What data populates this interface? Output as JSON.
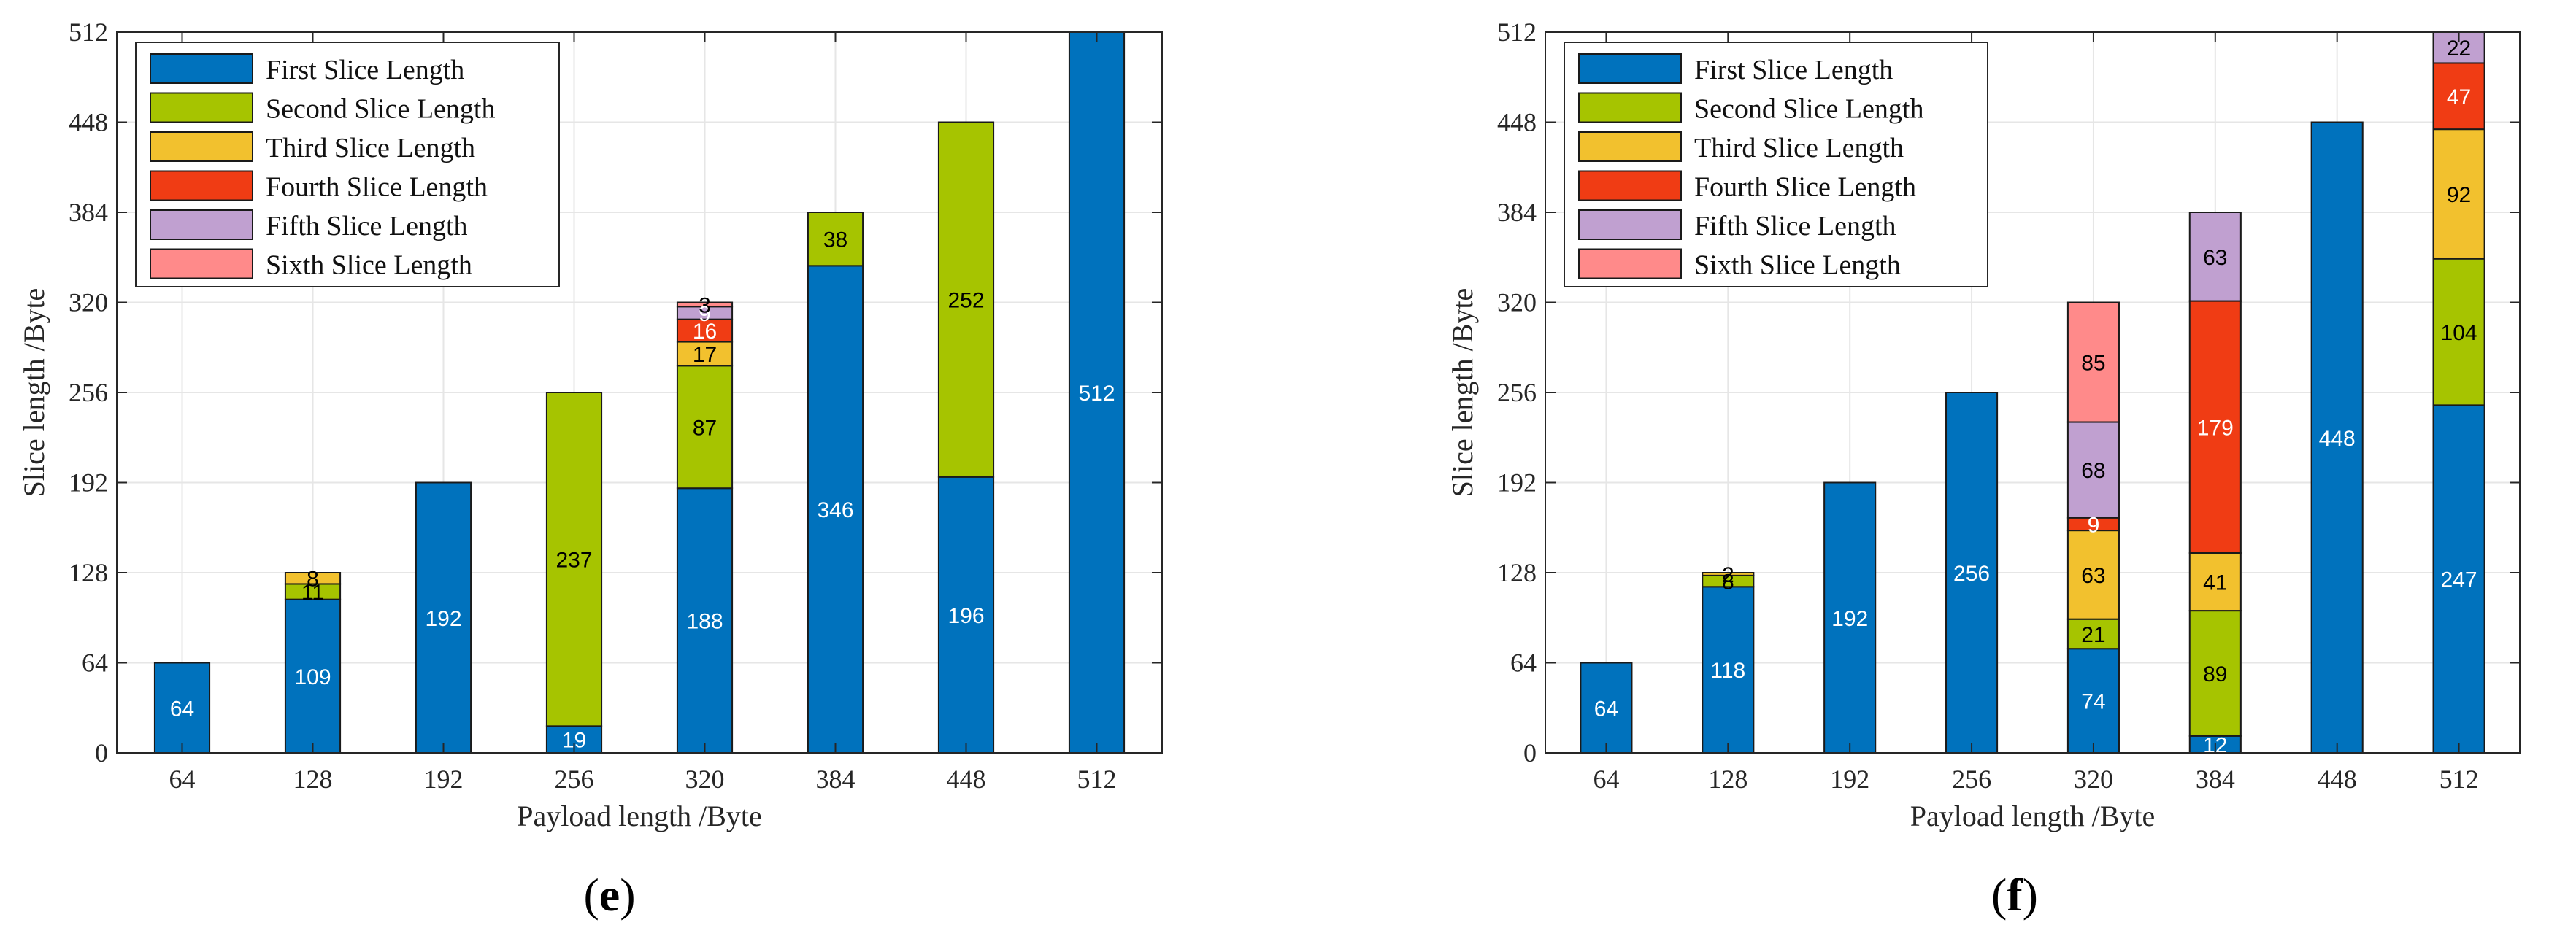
{
  "colors": {
    "first": "#0072BD",
    "second": "#A6C400",
    "third": "#F2C12E",
    "fourth": "#F03C14",
    "fifth": "#C0A0D0",
    "sixth": "#FF8A8A",
    "grid": "#E6E6E6",
    "axis": "#262626"
  },
  "chart_data": [
    {
      "type": "bar",
      "stacked": true,
      "caption": "(e)",
      "caption_letter": "e",
      "xlabel": "Payload length /Byte",
      "ylabel": "Slice length /Byte",
      "categories": [
        "64",
        "128",
        "192",
        "256",
        "320",
        "384",
        "448",
        "512"
      ],
      "ylim": [
        0,
        512
      ],
      "yticks": [
        "0",
        "64",
        "128",
        "192",
        "256",
        "320",
        "384",
        "448",
        "512"
      ],
      "grid": true,
      "legend_position": "top-left",
      "series": [
        {
          "name": "First Slice Length",
          "color_key": "first",
          "values": [
            64,
            109,
            192,
            19,
            188,
            346,
            196,
            512
          ],
          "labels": [
            "64",
            "109",
            "192",
            "19",
            "188",
            "346",
            "196",
            "512"
          ],
          "label_color": "#ffffff"
        },
        {
          "name": "Second Slice Length",
          "color_key": "second",
          "values": [
            0,
            11,
            0,
            237,
            87,
            38,
            252,
            0
          ],
          "labels": [
            "",
            "11",
            "",
            "237",
            "87",
            "38",
            "252",
            ""
          ],
          "label_color": "#000000"
        },
        {
          "name": "Third Slice Length",
          "color_key": "third",
          "values": [
            0,
            8,
            0,
            0,
            17,
            0,
            0,
            0
          ],
          "labels": [
            "",
            "8",
            "",
            "",
            "17",
            "",
            "",
            ""
          ],
          "label_color": "#000000"
        },
        {
          "name": "Fourth Slice Length",
          "color_key": "fourth",
          "values": [
            0,
            0,
            0,
            0,
            16,
            0,
            0,
            0
          ],
          "labels": [
            "",
            "",
            "",
            "",
            "16",
            "",
            "",
            ""
          ],
          "label_color": "#ffffff"
        },
        {
          "name": "Fifth Slice Length",
          "color_key": "fifth",
          "values": [
            0,
            0,
            0,
            0,
            9,
            0,
            0,
            0
          ],
          "labels": [
            "",
            "",
            "",
            "",
            "9",
            "",
            "",
            ""
          ],
          "label_color": "#ffffff"
        },
        {
          "name": "Sixth Slice Length",
          "color_key": "sixth",
          "values": [
            0,
            0,
            0,
            0,
            3,
            0,
            0,
            0
          ],
          "labels": [
            "",
            "",
            "",
            "",
            "3",
            "",
            "",
            ""
          ],
          "label_color": "#000000"
        }
      ]
    },
    {
      "type": "bar",
      "stacked": true,
      "caption": "(f)",
      "caption_letter": "f",
      "xlabel": "Payload length /Byte",
      "ylabel": "Slice length /Byte",
      "categories": [
        "64",
        "128",
        "192",
        "256",
        "320",
        "384",
        "448",
        "512"
      ],
      "ylim": [
        0,
        512
      ],
      "yticks": [
        "0",
        "64",
        "128",
        "192",
        "256",
        "320",
        "384",
        "448",
        "512"
      ],
      "grid": true,
      "legend_position": "top-left",
      "series": [
        {
          "name": "First Slice Length",
          "color_key": "first",
          "values": [
            64,
            118,
            192,
            256,
            74,
            12,
            448,
            247
          ],
          "labels": [
            "64",
            "118",
            "192",
            "256",
            "74",
            "12",
            "448",
            "247"
          ],
          "label_color": "#ffffff"
        },
        {
          "name": "Second Slice Length",
          "color_key": "second",
          "values": [
            0,
            8,
            0,
            0,
            21,
            89,
            0,
            104
          ],
          "labels": [
            "",
            "8",
            "",
            "",
            "21",
            "89",
            "",
            "104"
          ],
          "label_color": "#000000"
        },
        {
          "name": "Third Slice Length",
          "color_key": "third",
          "values": [
            0,
            2,
            0,
            0,
            63,
            41,
            0,
            92
          ],
          "labels": [
            "",
            "2",
            "",
            "",
            "63",
            "41",
            "",
            "92"
          ],
          "label_color": "#000000"
        },
        {
          "name": "Fourth Slice Length",
          "color_key": "fourth",
          "values": [
            0,
            0,
            0,
            0,
            9,
            179,
            0,
            47
          ],
          "labels": [
            "",
            "",
            "",
            "",
            "9",
            "179",
            "",
            "47"
          ],
          "label_color": "#ffffff"
        },
        {
          "name": "Fifth Slice Length",
          "color_key": "fifth",
          "values": [
            0,
            0,
            0,
            0,
            68,
            63,
            0,
            22
          ],
          "labels": [
            "",
            "",
            "",
            "",
            "68",
            "63",
            "",
            "22"
          ],
          "label_color": "#000000"
        },
        {
          "name": "Sixth Slice Length",
          "color_key": "sixth",
          "values": [
            0,
            0,
            0,
            0,
            85,
            0,
            0,
            0
          ],
          "labels": [
            "",
            "",
            "",
            "",
            "85",
            "",
            "",
            ""
          ],
          "label_color": "#000000"
        }
      ]
    }
  ]
}
